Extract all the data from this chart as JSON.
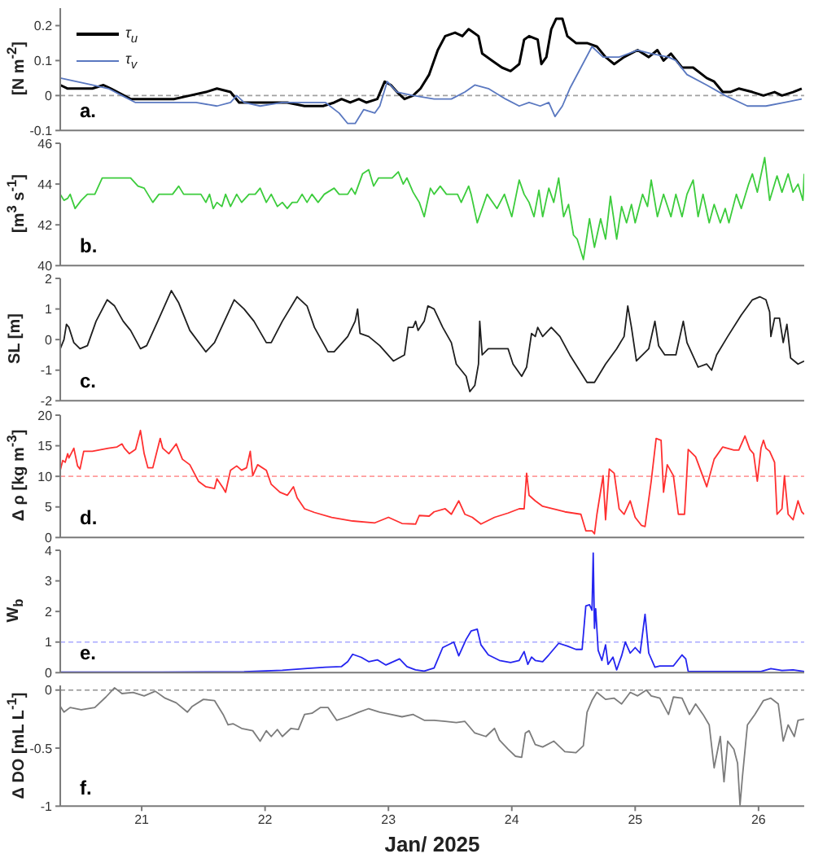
{
  "chart_data": [
    {
      "type": "line",
      "ylabel": "[N m$^{-2}$]",
      "annotations": [
        "a."
      ],
      "legend": "top left",
      "tick_labels": "y",
      "xlim": [
        20.34,
        26.37
      ],
      "xticks": [
        21,
        22,
        23,
        24,
        25,
        26
      ],
      "ylim": [
        -0.1,
        0.25
      ],
      "yticks": [
        -0.1,
        0,
        0.1,
        0.2
      ],
      "ref_lines": [
        {
          "axis": "y",
          "value": 0,
          "color": "#a0a0a0",
          "line_style": "dashed"
        }
      ],
      "series": [
        {
          "name": "τ$_{u}$",
          "color": "#000000",
          "x": [
            20.34,
            20.4,
            20.51,
            20.6,
            20.69,
            20.75,
            20.91,
            21.04,
            21.17,
            21.26,
            21.39,
            21.52,
            21.61,
            21.72,
            21.79,
            21.92,
            22.05,
            22.18,
            22.32,
            22.47,
            22.56,
            22.62,
            22.69,
            22.76,
            22.82,
            22.91,
            22.97,
            23.02,
            23.07,
            23.13,
            23.2,
            23.26,
            23.33,
            23.4,
            23.46,
            23.54,
            23.6,
            23.65,
            23.69,
            23.73,
            23.76,
            23.84,
            23.92,
            23.99,
            24.06,
            24.1,
            24.14,
            24.21,
            24.24,
            24.28,
            24.32,
            24.36,
            24.41,
            24.45,
            24.52,
            24.61,
            24.69,
            24.76,
            24.83,
            24.91,
            25.02,
            25.11,
            25.18,
            25.23,
            25.29,
            25.38,
            25.47,
            25.58,
            25.64,
            25.71,
            25.77,
            25.84,
            25.95,
            26.04,
            26.13,
            26.19,
            26.28,
            26.35
          ],
          "values": [
            0.03,
            0.02,
            0.02,
            0.02,
            0.03,
            0.02,
            -0.01,
            -0.01,
            -0.01,
            -0.01,
            0,
            0.01,
            0.02,
            0.01,
            -0.02,
            -0.02,
            -0.02,
            -0.02,
            -0.03,
            -0.03,
            -0.02,
            -0.01,
            -0.02,
            -0.01,
            -0.02,
            -0.01,
            0.04,
            0.03,
            0.01,
            -0.01,
            0,
            0.02,
            0.06,
            0.13,
            0.17,
            0.18,
            0.17,
            0.19,
            0.18,
            0.17,
            0.12,
            0.1,
            0.08,
            0.07,
            0.09,
            0.16,
            0.17,
            0.16,
            0.09,
            0.11,
            0.19,
            0.22,
            0.22,
            0.17,
            0.15,
            0.15,
            0.14,
            0.11,
            0.09,
            0.11,
            0.13,
            0.11,
            0.13,
            0.1,
            0.12,
            0.08,
            0.08,
            0.05,
            0.04,
            0.01,
            0.01,
            0.02,
            0.01,
            0,
            0.01,
            0,
            0.01,
            0.02
          ]
        },
        {
          "name": "τ$_{v}$",
          "color": "#5a78c0",
          "x": [
            20.34,
            20.47,
            20.6,
            20.73,
            20.84,
            20.95,
            21.06,
            21.26,
            21.44,
            21.61,
            21.72,
            21.77,
            21.83,
            21.96,
            22.14,
            22.32,
            22.49,
            22.6,
            22.67,
            22.73,
            22.8,
            22.89,
            22.93,
            22.99,
            23.07,
            23.2,
            23.37,
            23.51,
            23.62,
            23.7,
            23.81,
            23.95,
            24.06,
            24.14,
            24.23,
            24.3,
            24.35,
            24.41,
            24.47,
            24.56,
            24.65,
            24.74,
            24.87,
            25.02,
            25.13,
            25.27,
            25.33,
            25.42,
            25.58,
            25.73,
            25.91,
            26.06,
            26.21,
            26.35
          ],
          "values": [
            0.05,
            0.04,
            0.03,
            0.02,
            0,
            -0.02,
            -0.02,
            -0.02,
            -0.02,
            -0.03,
            -0.02,
            0,
            -0.02,
            -0.03,
            -0.02,
            -0.02,
            -0.02,
            -0.05,
            -0.08,
            -0.08,
            -0.04,
            -0.05,
            -0.03,
            0.04,
            0.01,
            0,
            -0.01,
            -0.01,
            0.01,
            0.03,
            0.02,
            -0.01,
            -0.03,
            -0.02,
            -0.03,
            -0.02,
            -0.06,
            -0.03,
            0.02,
            0.08,
            0.14,
            0.11,
            0.11,
            0.13,
            0.12,
            0.11,
            0.1,
            0.06,
            0.03,
            0,
            -0.03,
            -0.03,
            -0.02,
            -0.01
          ]
        }
      ]
    },
    {
      "type": "line",
      "ylabel": "[m$^{3}$ s$^{-1}$]",
      "annotations": [
        "b."
      ],
      "tick_labels": "y",
      "xlim": [
        20.34,
        26.37
      ],
      "xticks": [
        21,
        22,
        23,
        24,
        25,
        26
      ],
      "ylim": [
        40,
        46
      ],
      "yticks": [
        40,
        42,
        44,
        46
      ],
      "series": [
        {
          "color": "#3ccc3c",
          "x": [
            20.34,
            20.37,
            20.4,
            20.42,
            20.46,
            20.51,
            20.56,
            20.62,
            20.68,
            20.91,
            20.97,
            21.02,
            21.09,
            21.14,
            21.25,
            21.3,
            21.34,
            21.48,
            21.52,
            21.55,
            21.58,
            21.61,
            21.65,
            21.68,
            21.72,
            21.77,
            21.81,
            21.87,
            21.92,
            21.96,
            22.01,
            22.05,
            22.1,
            22.14,
            22.18,
            22.22,
            22.26,
            22.3,
            22.34,
            22.38,
            22.43,
            22.48,
            22.56,
            22.6,
            22.67,
            22.7,
            22.73,
            22.79,
            22.84,
            22.88,
            22.92,
            23.03,
            23.08,
            23.12,
            23.15,
            23.2,
            23.25,
            23.29,
            23.34,
            23.37,
            23.42,
            23.47,
            23.56,
            23.59,
            23.65,
            23.67,
            23.72,
            23.8,
            23.88,
            23.94,
            24.0,
            24.06,
            24.1,
            24.14,
            24.18,
            24.22,
            24.25,
            24.3,
            24.34,
            24.38,
            24.42,
            24.46,
            24.5,
            24.53,
            24.58,
            24.63,
            24.67,
            24.72,
            24.76,
            24.8,
            24.85,
            24.89,
            24.93,
            24.97,
            25.0,
            25.06,
            25.1,
            25.13,
            25.18,
            25.23,
            25.29,
            25.33,
            25.38,
            25.42,
            25.47,
            25.51,
            25.55,
            25.6,
            25.64,
            25.69,
            25.73,
            25.76,
            25.82,
            25.86,
            25.92,
            25.95,
            25.99,
            26.05,
            26.09,
            26.15,
            26.19,
            26.24,
            26.28,
            26.32,
            26.36,
            26.37
          ],
          "values": [
            43.5,
            43.2,
            43.3,
            43.5,
            42.8,
            43.2,
            43.5,
            43.5,
            44.3,
            44.3,
            43.9,
            43.8,
            43.1,
            43.5,
            43.5,
            43.9,
            43.5,
            43.5,
            43.1,
            43.5,
            42.8,
            43.1,
            42.9,
            43.5,
            42.9,
            43.5,
            43.1,
            43.5,
            43.5,
            43.8,
            43.1,
            43.5,
            42.9,
            43.1,
            42.8,
            43.1,
            43.1,
            43.5,
            43.1,
            43.5,
            43.1,
            43.5,
            43.8,
            43.5,
            43.5,
            43.8,
            43.5,
            44.5,
            44.7,
            43.9,
            44.3,
            44.3,
            44.6,
            44.0,
            44.3,
            43.6,
            43.1,
            42.4,
            43.8,
            43.5,
            43.9,
            43.5,
            43.5,
            43.1,
            43.9,
            43.5,
            42.1,
            43.5,
            42.8,
            43.5,
            42.4,
            44.2,
            43.5,
            43.1,
            42.4,
            43.7,
            42.4,
            43.8,
            43.1,
            44.3,
            42.4,
            43.0,
            41.5,
            41.3,
            40.3,
            42.3,
            40.9,
            42.3,
            41.3,
            43.4,
            41.3,
            42.9,
            42.1,
            43.0,
            42.1,
            43.5,
            42.9,
            44.2,
            42.4,
            43.5,
            42.4,
            43.5,
            42.4,
            43.5,
            44.2,
            42.4,
            43.5,
            42.1,
            43.0,
            42.1,
            42.8,
            42.1,
            43.5,
            42.8,
            44.0,
            44.5,
            43.6,
            45.3,
            43.2,
            44.4,
            43.6,
            44.5,
            43.6,
            44.0,
            43.2,
            44.5
          ]
        }
      ]
    },
    {
      "type": "line",
      "ylabel": "SL [m]",
      "annotations": [
        "c."
      ],
      "tick_labels": "y",
      "xlim": [
        20.34,
        26.37
      ],
      "xticks": [
        21,
        22,
        23,
        24,
        25,
        26
      ],
      "ylim": [
        -2,
        2
      ],
      "yticks": [
        -2,
        -1,
        0,
        1,
        2
      ],
      "series": [
        {
          "color": "#1e1e1e",
          "x": [
            20.34,
            20.37,
            20.39,
            20.41,
            20.45,
            20.5,
            20.56,
            20.63,
            20.72,
            20.78,
            20.85,
            20.91,
            20.99,
            21.04,
            21.13,
            21.24,
            21.3,
            21.39,
            21.52,
            21.59,
            21.75,
            21.83,
            21.91,
            22.01,
            22.05,
            22.14,
            22.26,
            22.34,
            22.4,
            22.51,
            22.56,
            22.67,
            22.73,
            22.75,
            22.77,
            22.84,
            22.93,
            23.04,
            23.13,
            23.16,
            23.2,
            23.22,
            23.24,
            23.29,
            23.32,
            23.37,
            23.44,
            23.51,
            23.55,
            23.59,
            23.63,
            23.66,
            23.7,
            23.73,
            23.74,
            23.76,
            23.81,
            23.92,
            23.97,
            24.01,
            24.08,
            24.12,
            24.16,
            24.19,
            24.21,
            24.25,
            24.32,
            24.39,
            24.47,
            24.61,
            24.67,
            24.76,
            24.85,
            24.91,
            24.94,
            24.97,
            25.01,
            25.11,
            25.16,
            25.19,
            25.24,
            25.33,
            25.39,
            25.42,
            25.51,
            25.58,
            25.62,
            25.66,
            25.75,
            25.86,
            25.95,
            26.01,
            26.06,
            26.09,
            26.1,
            26.13,
            26.17,
            26.2,
            26.23,
            26.26,
            26.32,
            26.37
          ],
          "values": [
            -0.3,
            0,
            0.5,
            0.4,
            -0.1,
            -0.3,
            -0.2,
            0.6,
            1.3,
            1.1,
            0.6,
            0.3,
            -0.3,
            -0.2,
            0.6,
            1.6,
            1.2,
            0.3,
            -0.4,
            -0.1,
            1.3,
            1.0,
            0.6,
            -0.1,
            -0.1,
            0.6,
            1.4,
            1.1,
            0.4,
            -0.4,
            -0.4,
            0.1,
            0.6,
            1.0,
            0.2,
            0.1,
            -0.2,
            -0.7,
            -0.5,
            0.4,
            0.4,
            0.6,
            0.3,
            0.6,
            1.1,
            1.0,
            0.4,
            -0.1,
            -0.8,
            -1.0,
            -1.2,
            -1.7,
            -1.5,
            -0.8,
            0.6,
            -0.5,
            -0.3,
            -0.3,
            -0.3,
            -0.8,
            -1.2,
            -0.9,
            0.2,
            0.1,
            0.4,
            0.1,
            0.4,
            0.1,
            -0.5,
            -1.4,
            -1.4,
            -0.8,
            -0.3,
            0.1,
            1.1,
            0.4,
            -0.7,
            -0.3,
            0.6,
            -0.2,
            -0.5,
            -0.5,
            0.6,
            -0.1,
            -0.9,
            -0.8,
            -1.0,
            -0.5,
            0.1,
            0.8,
            1.3,
            1.4,
            1.3,
            0.9,
            0.1,
            0.7,
            0.7,
            -0.1,
            0.5,
            -0.6,
            -0.8,
            -0.7
          ]
        }
      ]
    },
    {
      "type": "line",
      "ylabel": "Δ ρ [kg m$^{-3}$]",
      "annotations": [
        "d."
      ],
      "tick_labels": "y",
      "xlim": [
        20.34,
        26.37
      ],
      "xticks": [
        21,
        22,
        23,
        24,
        25,
        26
      ],
      "ylim": [
        0,
        20
      ],
      "yticks": [
        0,
        5,
        10,
        15,
        20
      ],
      "ref_lines": [
        {
          "axis": "y",
          "value": 10,
          "color": "#ff9c9c",
          "line_style": "dashed"
        }
      ],
      "series": [
        {
          "color": "#ff3030",
          "x": [
            20.34,
            20.36,
            20.38,
            20.4,
            20.41,
            20.45,
            20.48,
            20.5,
            20.53,
            20.6,
            20.73,
            20.8,
            20.84,
            20.86,
            20.9,
            20.95,
            20.99,
            21.02,
            21.05,
            21.09,
            21.15,
            21.17,
            21.22,
            21.28,
            21.33,
            21.39,
            21.46,
            21.52,
            21.59,
            21.61,
            21.66,
            21.68,
            21.72,
            21.77,
            21.81,
            21.85,
            21.88,
            21.9,
            21.94,
            22.01,
            22.05,
            22.12,
            22.18,
            22.23,
            22.26,
            22.32,
            22.4,
            22.54,
            22.71,
            22.89,
            23.0,
            23.11,
            23.22,
            23.25,
            23.33,
            23.37,
            23.46,
            23.51,
            23.57,
            23.62,
            23.68,
            23.75,
            23.86,
            23.97,
            24.06,
            24.1,
            24.12,
            24.14,
            24.19,
            24.25,
            24.43,
            24.56,
            24.6,
            24.65,
            24.67,
            24.69,
            24.74,
            24.76,
            24.79,
            24.83,
            24.87,
            24.91,
            24.96,
            25.0,
            25.05,
            25.08,
            25.13,
            25.17,
            25.21,
            25.23,
            25.26,
            25.31,
            25.35,
            25.4,
            25.43,
            25.49,
            25.58,
            25.64,
            25.71,
            25.8,
            25.84,
            25.89,
            25.93,
            25.96,
            25.99,
            26.02,
            26.04,
            26.06,
            26.09,
            26.13,
            26.15,
            26.19,
            26.21,
            26.24,
            26.28,
            26.32,
            26.35,
            26.37
          ],
          "values": [
            11.0,
            12.6,
            12.3,
            13.7,
            13.0,
            14.6,
            11.7,
            11.2,
            14.1,
            14.1,
            14.6,
            14.8,
            15.3,
            14.6,
            13.7,
            14.4,
            17.5,
            13.7,
            11.4,
            11.4,
            16.2,
            14.6,
            13.7,
            15.3,
            12.8,
            11.9,
            9.2,
            8.3,
            8.0,
            9.6,
            8.1,
            7.4,
            11.0,
            11.7,
            11.0,
            11.4,
            14.1,
            10.1,
            11.9,
            11.0,
            8.7,
            7.4,
            6.9,
            8.3,
            6.5,
            4.7,
            4.1,
            3.3,
            2.7,
            2.4,
            3.3,
            2.3,
            2.2,
            3.6,
            3.5,
            4.2,
            4.7,
            3.8,
            6.0,
            3.8,
            3.3,
            2.2,
            3.3,
            4.0,
            4.7,
            4.7,
            10.5,
            6.9,
            6.0,
            5.1,
            4.2,
            3.8,
            1.1,
            1.1,
            0.6,
            3.8,
            10.1,
            2.9,
            11.2,
            10.5,
            4.7,
            3.8,
            6.0,
            3.3,
            2.0,
            1.8,
            9.2,
            16.2,
            15.9,
            7.4,
            11.9,
            10.1,
            3.8,
            3.8,
            14.4,
            13.2,
            8.3,
            12.8,
            14.8,
            14.3,
            14.3,
            16.6,
            14.4,
            13.7,
            9.2,
            14.6,
            15.9,
            14.6,
            14.1,
            12.3,
            3.8,
            4.7,
            10.1,
            3.8,
            2.9,
            6.0,
            4.2,
            3.8
          ]
        }
      ]
    },
    {
      "type": "line",
      "ylabel": "W$_{b}$",
      "annotations": [
        "e."
      ],
      "tick_labels": "y",
      "xlim": [
        20.34,
        26.37
      ],
      "xticks": [
        21,
        22,
        23,
        24,
        25,
        26
      ],
      "ylim": [
        0,
        4
      ],
      "yticks": [
        0,
        1,
        2,
        3,
        4
      ],
      "ref_lines": [
        {
          "axis": "y",
          "value": 1,
          "color": "#a8a8ff",
          "line_style": "dashed"
        }
      ],
      "series": [
        {
          "color": "#2424f0",
          "x": [
            20.34,
            21.17,
            21.83,
            22.14,
            22.32,
            22.49,
            22.62,
            22.67,
            22.71,
            22.78,
            22.84,
            22.91,
            22.98,
            23.09,
            23.15,
            23.22,
            23.29,
            23.37,
            23.44,
            23.53,
            23.57,
            23.63,
            23.67,
            23.72,
            23.75,
            23.81,
            23.9,
            23.99,
            24.06,
            24.1,
            24.13,
            24.16,
            24.19,
            24.25,
            24.3,
            24.38,
            24.45,
            24.52,
            24.57,
            24.6,
            24.63,
            24.65,
            24.66,
            24.67,
            24.68,
            24.7,
            24.73,
            24.76,
            24.78,
            24.82,
            24.85,
            24.89,
            24.92,
            24.96,
            25.0,
            25.04,
            25.08,
            25.11,
            25.16,
            25.2,
            25.31,
            25.38,
            25.41,
            25.43,
            25.58,
            26.02,
            26.1,
            26.19,
            26.28,
            26.37
          ],
          "values": [
            0.02,
            0.02,
            0.03,
            0.08,
            0.13,
            0.18,
            0.2,
            0.36,
            0.6,
            0.5,
            0.36,
            0.42,
            0.25,
            0.45,
            0.2,
            0.09,
            0.05,
            0.15,
            0.82,
            1.0,
            0.55,
            1.09,
            1.36,
            1.42,
            0.91,
            0.58,
            0.4,
            0.33,
            0.4,
            0.69,
            0.27,
            0.51,
            0.4,
            0.36,
            0.58,
            0.96,
            0.87,
            0.76,
            0.76,
            2.18,
            2.22,
            2.04,
            3.91,
            1.45,
            2.09,
            0.73,
            0.4,
            0.91,
            0.27,
            0.51,
            0.09,
            0.55,
            1.0,
            0.64,
            0.82,
            0.64,
            1.91,
            0.64,
            0.18,
            0.22,
            0.22,
            0.58,
            0.45,
            0.04,
            0.04,
            0.04,
            0.13,
            0.07,
            0.09,
            0.04
          ]
        }
      ]
    },
    {
      "type": "line",
      "ylabel": "Δ DO [mL L$^{-1}$]",
      "xlabel": "Jan/ 2025",
      "annotations": [
        "f."
      ],
      "xlim": [
        20.34,
        26.37
      ],
      "xticks": [
        21,
        22,
        23,
        24,
        25,
        26
      ],
      "ylim": [
        -1,
        0.04
      ],
      "yticks": [
        -1,
        -0.5,
        0
      ],
      "ref_lines": [
        {
          "axis": "y",
          "value": 0,
          "color": "#909090",
          "line_style": "dashed"
        }
      ],
      "series": [
        {
          "color": "#7c7c7c",
          "x": [
            20.34,
            20.37,
            20.42,
            20.51,
            20.62,
            20.71,
            20.78,
            20.84,
            20.93,
            21.02,
            21.11,
            21.19,
            21.28,
            21.37,
            21.41,
            21.5,
            21.59,
            21.66,
            21.7,
            21.74,
            21.81,
            21.9,
            21.96,
            22.01,
            22.05,
            22.1,
            22.14,
            22.21,
            22.27,
            22.32,
            22.38,
            22.45,
            22.51,
            22.58,
            22.67,
            22.76,
            22.84,
            22.93,
            23.02,
            23.11,
            23.2,
            23.29,
            23.37,
            23.46,
            23.55,
            23.62,
            23.7,
            23.79,
            23.86,
            23.9,
            23.97,
            24.03,
            24.08,
            24.11,
            24.14,
            24.19,
            24.25,
            24.34,
            24.43,
            24.52,
            24.58,
            24.61,
            24.65,
            24.69,
            24.76,
            24.83,
            24.89,
            24.96,
            25.02,
            25.09,
            25.13,
            25.2,
            25.27,
            25.31,
            25.38,
            25.44,
            25.49,
            25.55,
            25.6,
            25.64,
            25.69,
            25.72,
            25.75,
            25.8,
            25.83,
            25.85,
            25.87,
            25.91,
            25.97,
            26.04,
            26.1,
            26.16,
            26.2,
            26.24,
            26.29,
            26.32,
            26.37
          ],
          "values": [
            -0.14,
            -0.19,
            -0.15,
            -0.17,
            -0.15,
            -0.06,
            0.02,
            -0.03,
            -0.02,
            -0.05,
            -0.01,
            -0.07,
            -0.11,
            -0.19,
            -0.14,
            -0.08,
            -0.09,
            -0.21,
            -0.3,
            -0.29,
            -0.33,
            -0.35,
            -0.44,
            -0.35,
            -0.4,
            -0.34,
            -0.4,
            -0.33,
            -0.34,
            -0.21,
            -0.2,
            -0.15,
            -0.15,
            -0.26,
            -0.23,
            -0.19,
            -0.16,
            -0.19,
            -0.21,
            -0.23,
            -0.21,
            -0.26,
            -0.26,
            -0.27,
            -0.28,
            -0.27,
            -0.37,
            -0.4,
            -0.33,
            -0.43,
            -0.51,
            -0.57,
            -0.58,
            -0.37,
            -0.35,
            -0.47,
            -0.49,
            -0.44,
            -0.53,
            -0.54,
            -0.48,
            -0.19,
            -0.09,
            -0.02,
            -0.08,
            -0.07,
            -0.12,
            -0.02,
            -0.05,
            0,
            -0.05,
            -0.07,
            -0.21,
            -0.06,
            -0.07,
            -0.21,
            -0.12,
            -0.21,
            -0.3,
            -0.67,
            -0.4,
            -0.79,
            -0.44,
            -0.51,
            -0.63,
            -0.99,
            -0.74,
            -0.3,
            -0.21,
            -0.09,
            -0.07,
            -0.12,
            -0.44,
            -0.3,
            -0.4,
            -0.26,
            -0.25
          ]
        }
      ]
    }
  ]
}
